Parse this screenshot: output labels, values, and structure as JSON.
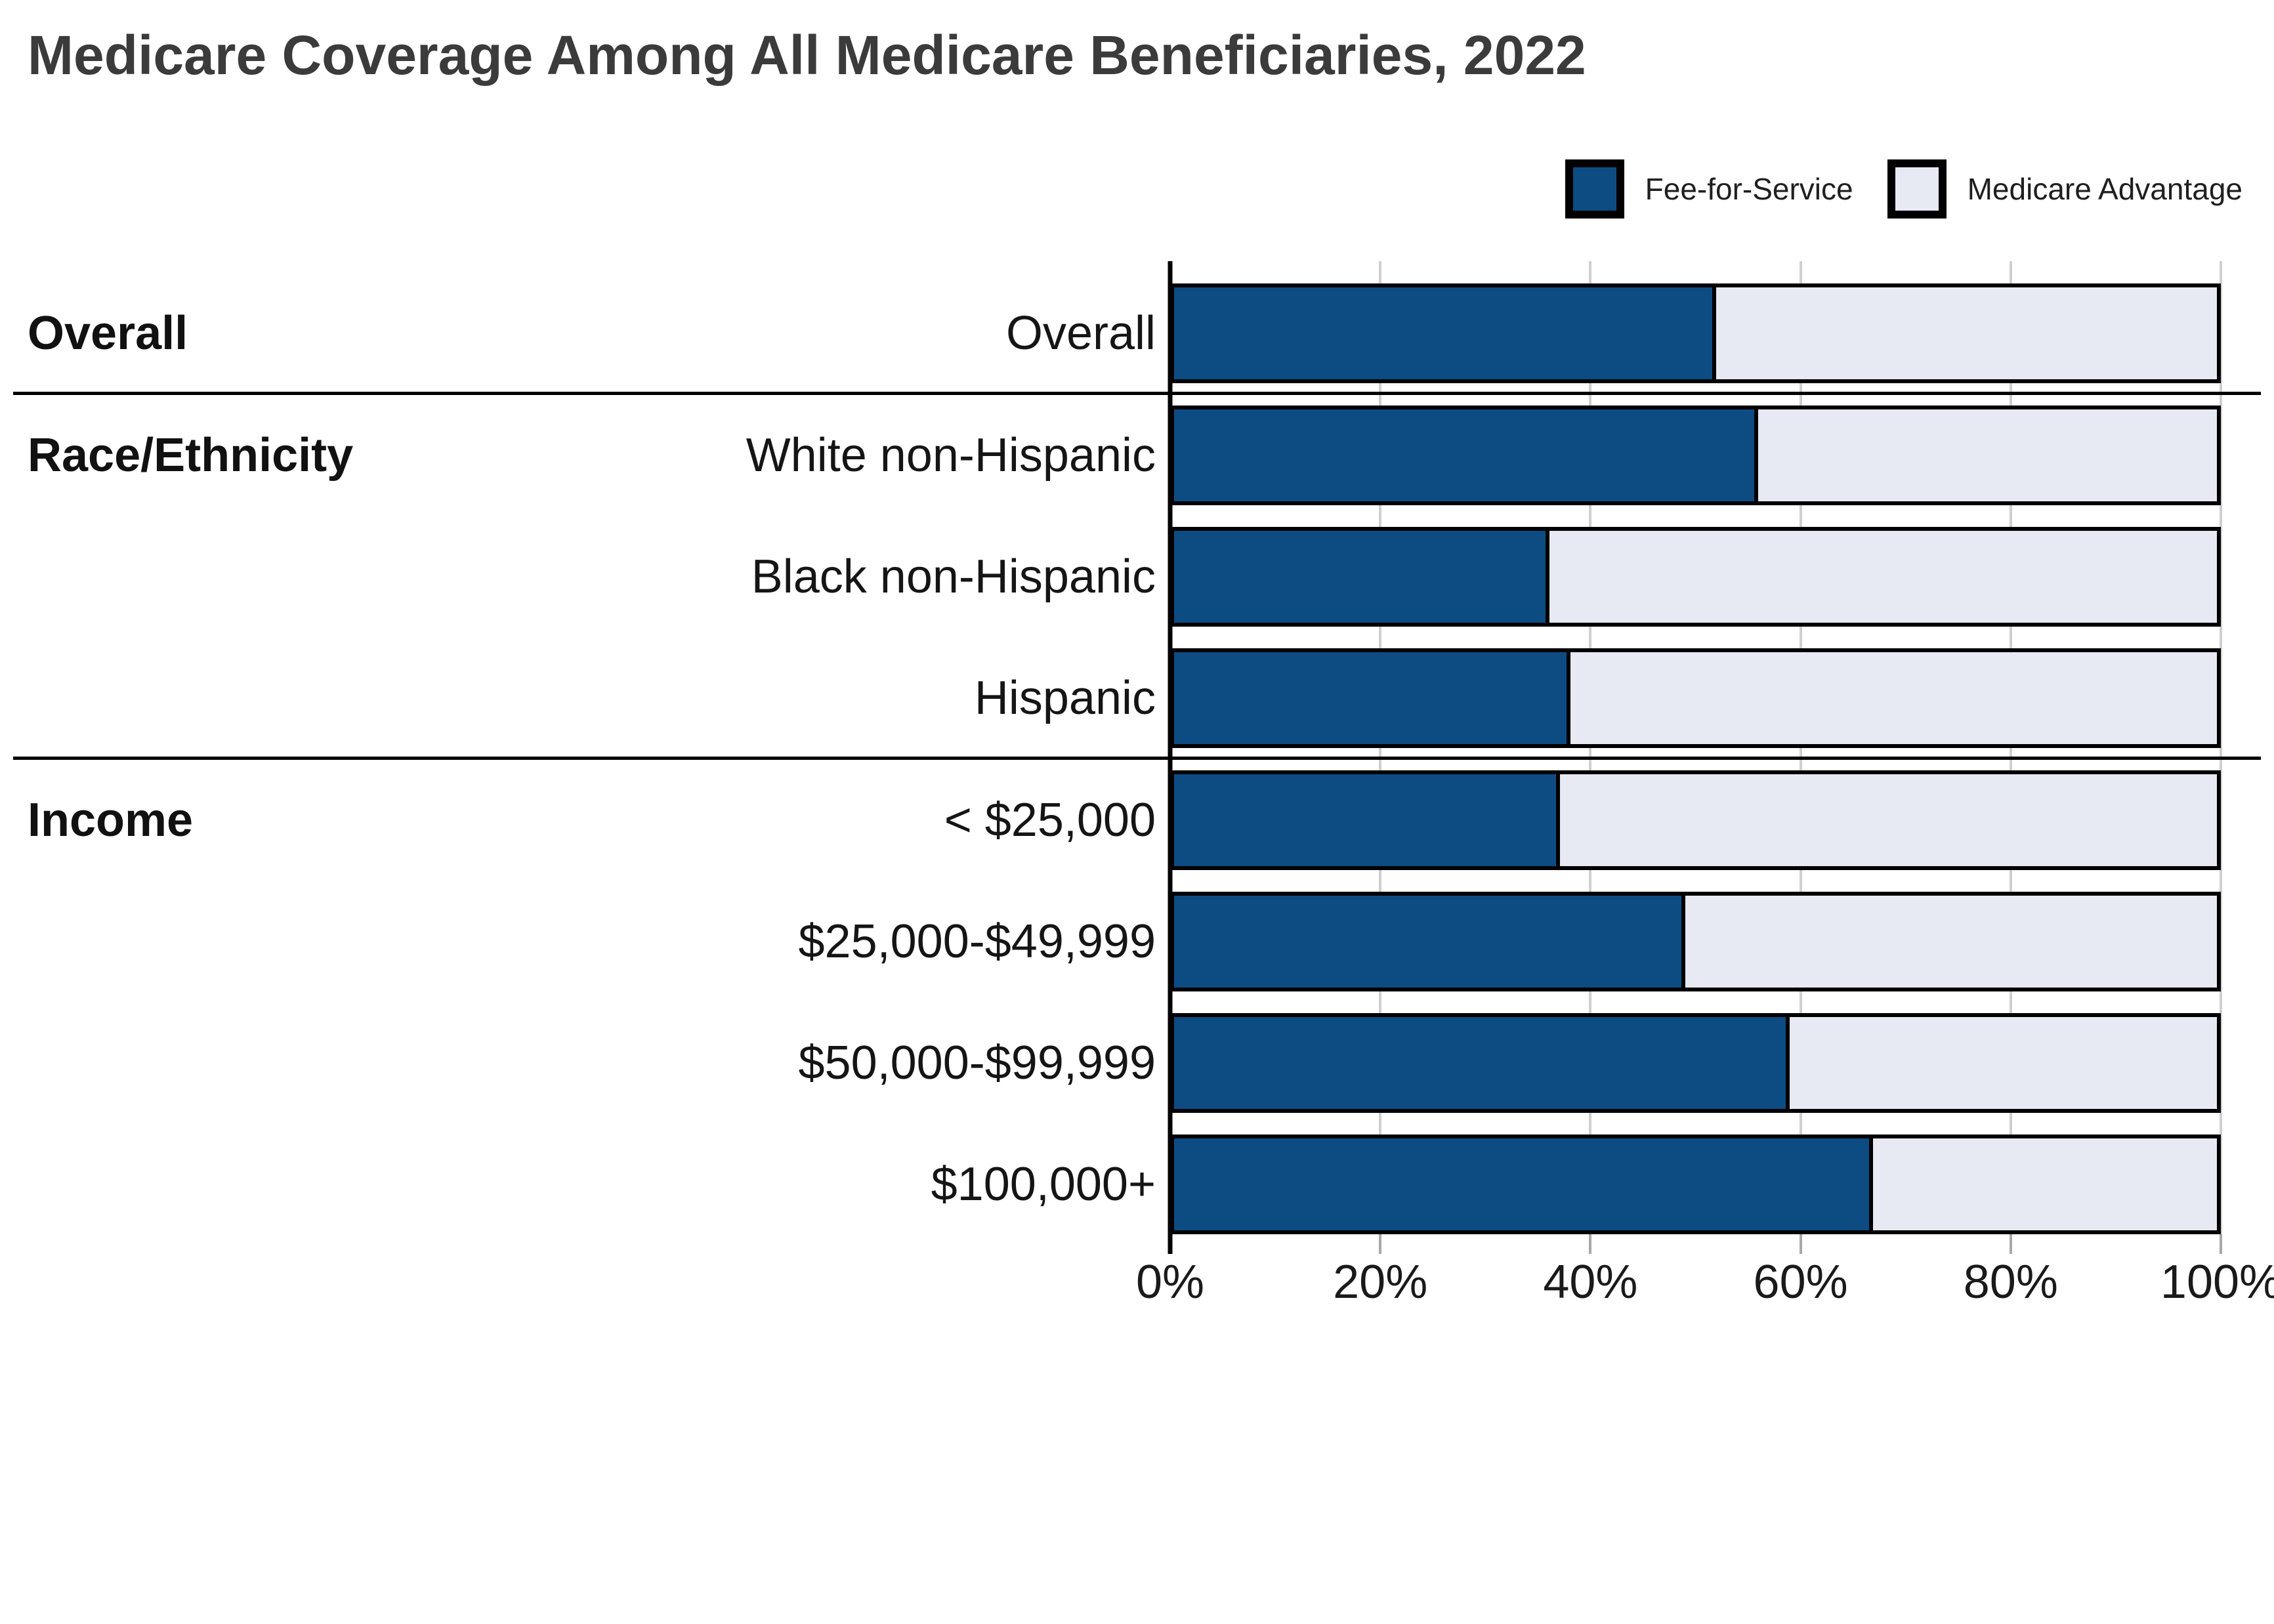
{
  "title": "Medicare Coverage Among All Medicare Beneficiaries, 2022",
  "legend": [
    {
      "label": "Fee-for-Service",
      "color": "#0d4c83"
    },
    {
      "label": "Medicare Advantage",
      "color": "#e7eaf2"
    }
  ],
  "chart_data": {
    "type": "bar",
    "stacked": true,
    "orientation": "horizontal",
    "title": "Medicare Coverage Among All Medicare Beneficiaries, 2022",
    "series_names": [
      "Fee-for-Service",
      "Medicare Advantage"
    ],
    "x_axis": {
      "ticks": [
        "0%",
        "20%",
        "40%",
        "60%",
        "80%",
        "100%"
      ],
      "min": 0,
      "max": 100,
      "unit": "%"
    },
    "grid": true,
    "legend_position": "top-right",
    "colors": {
      "fee_for_service": "#0d4c83",
      "medicare_advantage": "#e7eaf2",
      "bar_border": "#000000",
      "gridline": "#cfcfcf",
      "title_text": "#3b3b3b"
    },
    "groups": [
      {
        "label": "Overall",
        "rows": [
          {
            "label": "Overall",
            "fee_for_service": 52,
            "medicare_advantage": 48
          }
        ]
      },
      {
        "label": "Race/Ethnicity",
        "rows": [
          {
            "label": "White non-Hispanic",
            "fee_for_service": 56,
            "medicare_advantage": 44
          },
          {
            "label": "Black non-Hispanic",
            "fee_for_service": 36,
            "medicare_advantage": 64
          },
          {
            "label": "Hispanic",
            "fee_for_service": 38,
            "medicare_advantage": 62
          }
        ]
      },
      {
        "label": "Income",
        "rows": [
          {
            "label": "< $25,000",
            "fee_for_service": 37,
            "medicare_advantage": 63
          },
          {
            "label": "$25,000-$49,999",
            "fee_for_service": 49,
            "medicare_advantage": 51
          },
          {
            "label": "$50,000-$99,999",
            "fee_for_service": 59,
            "medicare_advantage": 41
          },
          {
            "label": "$100,000+",
            "fee_for_service": 67,
            "medicare_advantage": 33
          }
        ]
      }
    ]
  }
}
